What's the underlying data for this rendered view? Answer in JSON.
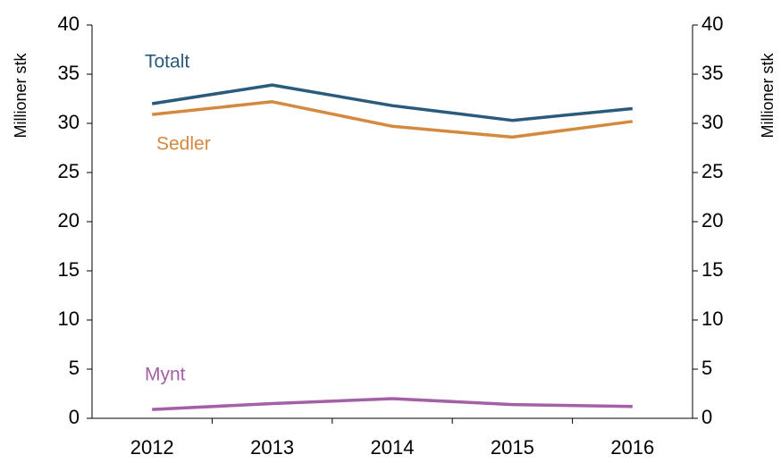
{
  "chart_data": {
    "type": "line",
    "ylabel": "Millioner stk",
    "y2label": "Millioner stk",
    "categories": [
      "2012",
      "2013",
      "2014",
      "2015",
      "2016"
    ],
    "series": [
      {
        "name": "Totalt",
        "color": "#2a5a7c",
        "values": [
          32.0,
          33.9,
          31.8,
          30.3,
          31.5
        ]
      },
      {
        "name": "Sedler",
        "color": "#d4893e",
        "values": [
          30.9,
          32.2,
          29.7,
          28.6,
          30.2
        ]
      },
      {
        "name": "Mynt",
        "color": "#a45fa6",
        "values": [
          0.9,
          1.5,
          2.0,
          1.4,
          1.2
        ]
      }
    ],
    "ylim": [
      0,
      40
    ],
    "yticks": [
      0,
      5,
      10,
      15,
      20,
      25,
      30,
      35,
      40
    ],
    "y2lim": [
      0,
      40
    ],
    "y2ticks": [
      0,
      5,
      10,
      15,
      20,
      25,
      30,
      35,
      40
    ],
    "grid": false
  }
}
